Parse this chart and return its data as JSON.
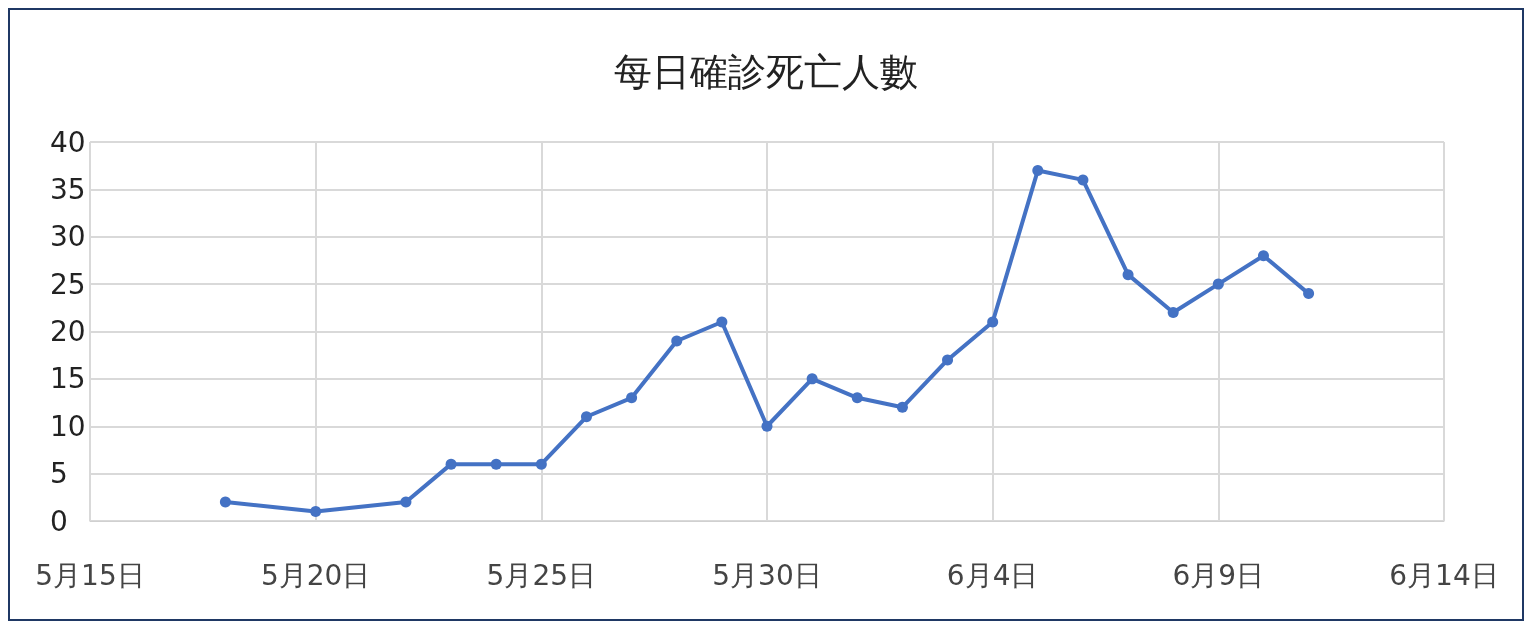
{
  "chart_data": {
    "type": "line",
    "title": "每日確診死亡人數",
    "x": [
      "--05-18",
      "--05-20",
      "--05-22",
      "--05-23",
      "--05-24",
      "--05-25",
      "--05-26",
      "--05-27",
      "--05-28",
      "--05-29",
      "--05-30",
      "--05-31",
      "--06-01",
      "--06-02",
      "--06-03",
      "--06-04",
      "--06-05",
      "--06-06",
      "--06-07",
      "--06-08",
      "--06-09",
      "--06-10",
      "--06-11"
    ],
    "values": [
      2,
      1,
      2,
      6,
      6,
      6,
      11,
      13,
      19,
      21,
      10,
      15,
      13,
      12,
      17,
      21,
      37,
      36,
      26,
      22,
      25,
      28,
      24
    ],
    "color": "#4472c4",
    "xlim": [
      "--05-15",
      "--06-14"
    ],
    "xticks": [
      {
        "value": "--05-15",
        "label": "5月15日"
      },
      {
        "value": "--05-20",
        "label": "5月20日"
      },
      {
        "value": "--05-25",
        "label": "5月25日"
      },
      {
        "value": "--05-30",
        "label": "5月30日"
      },
      {
        "value": "--06-04",
        "label": "6月4日"
      },
      {
        "value": "--06-09",
        "label": "6月9日"
      },
      {
        "value": "--06-14",
        "label": "6月14日"
      }
    ],
    "ylim": [
      0,
      40
    ],
    "yticks": [
      0,
      5,
      10,
      15,
      20,
      25,
      30,
      35,
      40
    ],
    "grid": true,
    "marker": "circle",
    "line_style": "solid"
  }
}
